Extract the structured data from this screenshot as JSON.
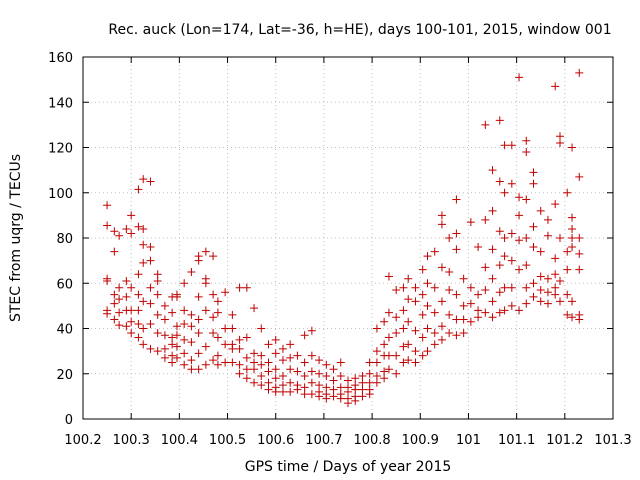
{
  "chart_data": {
    "type": "scatter",
    "title": "Rec. auck (Lon=174, Lat=-36, h=HE), days 100-101, 2015, window 001",
    "xlabel": "GPS time / Days of year 2015",
    "ylabel": "STEC from uqrg / TECUs",
    "xlim": [
      100.2,
      101.3
    ],
    "ylim": [
      0,
      160
    ],
    "xticks": [
      "100.2",
      "100.3",
      "100.4",
      "100.5",
      "100.6",
      "100.7",
      "100.8",
      "100.9",
      "101",
      "101.1",
      "101.2",
      "101.3"
    ],
    "yticks": [
      "0",
      "20",
      "40",
      "60",
      "80",
      "100",
      "120",
      "140",
      "160"
    ],
    "xtick_values": [
      100.2,
      100.3,
      100.4,
      100.5,
      100.6,
      100.7,
      100.8,
      100.9,
      101.0,
      101.1,
      101.2,
      101.3
    ],
    "ytick_values": [
      0,
      20,
      40,
      60,
      80,
      100,
      120,
      140,
      160
    ],
    "grid": true,
    "marker": "plus",
    "color": "#c00000",
    "points": [
      [
        100.25,
        94.5
      ],
      [
        100.25,
        85.5
      ],
      [
        100.25,
        62
      ],
      [
        100.25,
        61
      ],
      [
        100.25,
        48
      ],
      [
        100.25,
        46.5
      ],
      [
        100.265,
        83
      ],
      [
        100.265,
        74
      ],
      [
        100.265,
        55
      ],
      [
        100.265,
        51
      ],
      [
        100.265,
        44
      ],
      [
        100.275,
        81
      ],
      [
        100.275,
        58
      ],
      [
        100.275,
        53
      ],
      [
        100.275,
        47
      ],
      [
        100.275,
        41.5
      ],
      [
        100.29,
        84
      ],
      [
        100.29,
        61
      ],
      [
        100.29,
        54
      ],
      [
        100.29,
        48
      ],
      [
        100.29,
        41
      ],
      [
        100.3,
        90
      ],
      [
        100.3,
        82
      ],
      [
        100.3,
        58
      ],
      [
        100.3,
        48
      ],
      [
        100.3,
        43
      ],
      [
        100.3,
        38
      ],
      [
        100.315,
        101.5
      ],
      [
        100.315,
        85
      ],
      [
        100.315,
        64
      ],
      [
        100.315,
        55
      ],
      [
        100.315,
        48
      ],
      [
        100.315,
        42
      ],
      [
        100.315,
        36
      ],
      [
        100.325,
        106
      ],
      [
        100.325,
        84
      ],
      [
        100.325,
        77
      ],
      [
        100.325,
        69
      ],
      [
        100.325,
        52
      ],
      [
        100.325,
        40
      ],
      [
        100.325,
        33
      ],
      [
        100.34,
        105
      ],
      [
        100.34,
        76
      ],
      [
        100.34,
        70
      ],
      [
        100.34,
        58
      ],
      [
        100.34,
        51
      ],
      [
        100.34,
        42
      ],
      [
        100.34,
        31
      ],
      [
        100.355,
        64
      ],
      [
        100.355,
        61
      ],
      [
        100.355,
        55
      ],
      [
        100.355,
        46
      ],
      [
        100.355,
        38
      ],
      [
        100.355,
        30
      ],
      [
        100.37,
        50
      ],
      [
        100.37,
        44
      ],
      [
        100.37,
        37
      ],
      [
        100.37,
        31
      ],
      [
        100.37,
        27
      ],
      [
        100.385,
        54
      ],
      [
        100.385,
        47
      ],
      [
        100.385,
        36
      ],
      [
        100.385,
        33
      ],
      [
        100.385,
        28
      ],
      [
        100.385,
        25
      ],
      [
        100.395,
        55
      ],
      [
        100.395,
        54
      ],
      [
        100.395,
        41
      ],
      [
        100.395,
        37
      ],
      [
        100.395,
        32
      ],
      [
        100.395,
        27
      ],
      [
        100.41,
        60
      ],
      [
        100.41,
        48
      ],
      [
        100.41,
        42
      ],
      [
        100.41,
        35
      ],
      [
        100.41,
        29
      ],
      [
        100.41,
        24
      ],
      [
        100.425,
        65
      ],
      [
        100.425,
        46
      ],
      [
        100.425,
        41
      ],
      [
        100.425,
        34
      ],
      [
        100.425,
        26
      ],
      [
        100.425,
        22
      ],
      [
        100.44,
        72
      ],
      [
        100.44,
        70
      ],
      [
        100.44,
        54
      ],
      [
        100.44,
        44
      ],
      [
        100.44,
        38
      ],
      [
        100.44,
        29
      ],
      [
        100.44,
        22
      ],
      [
        100.455,
        74
      ],
      [
        100.455,
        62
      ],
      [
        100.455,
        60
      ],
      [
        100.455,
        48
      ],
      [
        100.455,
        32
      ],
      [
        100.455,
        24
      ],
      [
        100.47,
        72
      ],
      [
        100.47,
        55
      ],
      [
        100.47,
        45
      ],
      [
        100.47,
        38
      ],
      [
        100.47,
        26
      ],
      [
        100.48,
        52
      ],
      [
        100.48,
        47
      ],
      [
        100.48,
        36
      ],
      [
        100.48,
        28
      ],
      [
        100.48,
        24
      ],
      [
        100.495,
        56
      ],
      [
        100.495,
        40
      ],
      [
        100.495,
        33
      ],
      [
        100.495,
        25
      ],
      [
        100.51,
        46
      ],
      [
        100.51,
        40
      ],
      [
        100.51,
        33
      ],
      [
        100.51,
        31
      ],
      [
        100.51,
        25
      ],
      [
        100.525,
        58
      ],
      [
        100.525,
        35
      ],
      [
        100.525,
        31
      ],
      [
        100.525,
        24
      ],
      [
        100.525,
        20
      ],
      [
        100.54,
        58
      ],
      [
        100.54,
        36
      ],
      [
        100.54,
        27
      ],
      [
        100.54,
        22
      ],
      [
        100.54,
        18
      ],
      [
        100.555,
        49
      ],
      [
        100.555,
        29
      ],
      [
        100.555,
        25
      ],
      [
        100.555,
        22
      ],
      [
        100.555,
        16
      ],
      [
        100.57,
        40
      ],
      [
        100.57,
        28
      ],
      [
        100.57,
        24
      ],
      [
        100.57,
        19
      ],
      [
        100.57,
        15
      ],
      [
        100.585,
        33
      ],
      [
        100.585,
        25
      ],
      [
        100.585,
        21
      ],
      [
        100.585,
        16
      ],
      [
        100.585,
        13
      ],
      [
        100.6,
        35
      ],
      [
        100.6,
        29
      ],
      [
        100.6,
        22
      ],
      [
        100.6,
        18
      ],
      [
        100.6,
        14
      ],
      [
        100.6,
        12
      ],
      [
        100.615,
        31
      ],
      [
        100.615,
        26
      ],
      [
        100.615,
        19
      ],
      [
        100.615,
        15
      ],
      [
        100.615,
        12
      ],
      [
        100.63,
        33
      ],
      [
        100.63,
        27
      ],
      [
        100.63,
        22
      ],
      [
        100.63,
        16
      ],
      [
        100.63,
        12
      ],
      [
        100.645,
        28
      ],
      [
        100.645,
        21
      ],
      [
        100.645,
        15
      ],
      [
        100.645,
        13
      ],
      [
        100.66,
        37
      ],
      [
        100.66,
        25
      ],
      [
        100.66,
        19
      ],
      [
        100.66,
        14
      ],
      [
        100.66,
        11
      ],
      [
        100.675,
        39
      ],
      [
        100.675,
        28
      ],
      [
        100.675,
        21
      ],
      [
        100.675,
        16
      ],
      [
        100.675,
        11
      ],
      [
        100.69,
        26
      ],
      [
        100.69,
        20
      ],
      [
        100.69,
        15
      ],
      [
        100.69,
        12
      ],
      [
        100.69,
        10
      ],
      [
        100.705,
        24
      ],
      [
        100.705,
        19
      ],
      [
        100.705,
        14
      ],
      [
        100.705,
        11
      ],
      [
        100.705,
        9
      ],
      [
        100.72,
        22
      ],
      [
        100.72,
        17
      ],
      [
        100.72,
        13
      ],
      [
        100.72,
        10
      ],
      [
        100.735,
        25
      ],
      [
        100.735,
        19
      ],
      [
        100.735,
        14
      ],
      [
        100.735,
        11
      ],
      [
        100.735,
        9
      ],
      [
        100.75,
        17
      ],
      [
        100.75,
        14
      ],
      [
        100.75,
        12
      ],
      [
        100.75,
        9
      ],
      [
        100.75,
        7
      ],
      [
        100.765,
        18
      ],
      [
        100.765,
        15
      ],
      [
        100.765,
        13
      ],
      [
        100.765,
        10
      ],
      [
        100.765,
        8
      ],
      [
        100.78,
        19
      ],
      [
        100.78,
        16
      ],
      [
        100.78,
        13
      ],
      [
        100.78,
        10
      ],
      [
        100.795,
        25
      ],
      [
        100.795,
        20
      ],
      [
        100.795,
        16
      ],
      [
        100.795,
        13
      ],
      [
        100.795,
        11
      ],
      [
        100.81,
        40
      ],
      [
        100.81,
        30
      ],
      [
        100.81,
        25
      ],
      [
        100.81,
        19
      ],
      [
        100.81,
        16
      ],
      [
        100.825,
        43
      ],
      [
        100.825,
        33
      ],
      [
        100.825,
        28
      ],
      [
        100.825,
        21
      ],
      [
        100.825,
        18
      ],
      [
        100.835,
        63
      ],
      [
        100.835,
        47
      ],
      [
        100.835,
        36
      ],
      [
        100.835,
        28
      ],
      [
        100.835,
        22
      ],
      [
        100.85,
        57
      ],
      [
        100.85,
        45
      ],
      [
        100.85,
        38
      ],
      [
        100.85,
        28
      ],
      [
        100.85,
        20
      ],
      [
        100.865,
        58
      ],
      [
        100.865,
        48
      ],
      [
        100.865,
        40
      ],
      [
        100.865,
        32
      ],
      [
        100.865,
        25
      ],
      [
        100.875,
        62
      ],
      [
        100.875,
        53
      ],
      [
        100.875,
        43
      ],
      [
        100.875,
        33
      ],
      [
        100.875,
        26
      ],
      [
        100.89,
        58
      ],
      [
        100.89,
        52
      ],
      [
        100.89,
        39
      ],
      [
        100.89,
        30
      ],
      [
        100.89,
        25
      ],
      [
        100.905,
        66
      ],
      [
        100.905,
        55
      ],
      [
        100.905,
        46
      ],
      [
        100.905,
        36
      ],
      [
        100.905,
        28
      ],
      [
        100.915,
        72
      ],
      [
        100.915,
        60
      ],
      [
        100.915,
        50
      ],
      [
        100.915,
        40
      ],
      [
        100.915,
        30
      ],
      [
        100.93,
        74
      ],
      [
        100.93,
        58
      ],
      [
        100.93,
        47
      ],
      [
        100.93,
        38
      ],
      [
        100.93,
        33
      ],
      [
        100.945,
        90
      ],
      [
        100.945,
        86
      ],
      [
        100.945,
        67
      ],
      [
        100.945,
        52
      ],
      [
        100.945,
        41
      ],
      [
        100.945,
        35
      ],
      [
        100.96,
        80
      ],
      [
        100.96,
        65
      ],
      [
        100.96,
        57
      ],
      [
        100.96,
        46
      ],
      [
        100.96,
        38
      ],
      [
        100.975,
        97
      ],
      [
        100.975,
        82
      ],
      [
        100.975,
        75
      ],
      [
        100.975,
        55
      ],
      [
        100.975,
        44
      ],
      [
        100.975,
        37
      ],
      [
        100.99,
        62
      ],
      [
        100.99,
        50
      ],
      [
        100.99,
        44
      ],
      [
        100.99,
        38
      ],
      [
        101.005,
        87
      ],
      [
        101.005,
        58
      ],
      [
        101.005,
        51
      ],
      [
        101.005,
        43
      ],
      [
        101.02,
        76
      ],
      [
        101.02,
        55
      ],
      [
        101.02,
        48
      ],
      [
        101.02,
        45
      ],
      [
        101.035,
        130
      ],
      [
        101.035,
        88
      ],
      [
        101.035,
        67
      ],
      [
        101.035,
        57
      ],
      [
        101.035,
        47
      ],
      [
        101.05,
        110
      ],
      [
        101.05,
        92
      ],
      [
        101.05,
        75
      ],
      [
        101.05,
        62
      ],
      [
        101.05,
        52
      ],
      [
        101.05,
        45
      ],
      [
        101.065,
        132
      ],
      [
        101.065,
        105
      ],
      [
        101.065,
        83
      ],
      [
        101.065,
        68
      ],
      [
        101.065,
        56
      ],
      [
        101.065,
        47
      ],
      [
        101.075,
        121
      ],
      [
        101.075,
        100
      ],
      [
        101.075,
        80
      ],
      [
        101.075,
        72
      ],
      [
        101.075,
        58
      ],
      [
        101.075,
        48
      ],
      [
        101.09,
        121
      ],
      [
        101.09,
        104
      ],
      [
        101.09,
        82
      ],
      [
        101.09,
        70
      ],
      [
        101.09,
        58
      ],
      [
        101.09,
        50
      ],
      [
        101.105,
        151
      ],
      [
        101.105,
        98
      ],
      [
        101.105,
        90
      ],
      [
        101.105,
        79
      ],
      [
        101.105,
        66
      ],
      [
        101.105,
        48
      ],
      [
        101.12,
        123
      ],
      [
        101.12,
        118
      ],
      [
        101.12,
        97
      ],
      [
        101.12,
        80
      ],
      [
        101.12,
        68
      ],
      [
        101.12,
        58
      ],
      [
        101.12,
        51
      ],
      [
        101.135,
        109
      ],
      [
        101.135,
        104
      ],
      [
        101.135,
        85
      ],
      [
        101.135,
        76
      ],
      [
        101.135,
        60
      ],
      [
        101.135,
        54
      ],
      [
        101.15,
        92
      ],
      [
        101.15,
        74
      ],
      [
        101.15,
        63
      ],
      [
        101.15,
        57
      ],
      [
        101.15,
        52
      ],
      [
        101.165,
        88
      ],
      [
        101.165,
        81
      ],
      [
        101.165,
        62
      ],
      [
        101.165,
        56
      ],
      [
        101.165,
        51
      ],
      [
        101.18,
        147
      ],
      [
        101.18,
        95
      ],
      [
        101.18,
        71
      ],
      [
        101.18,
        64
      ],
      [
        101.18,
        58
      ],
      [
        101.18,
        55
      ],
      [
        101.19,
        125
      ],
      [
        101.19,
        122
      ],
      [
        101.19,
        80
      ],
      [
        101.19,
        61
      ],
      [
        101.19,
        52
      ],
      [
        101.205,
        100
      ],
      [
        101.205,
        74
      ],
      [
        101.205,
        66
      ],
      [
        101.205,
        55
      ],
      [
        101.205,
        46
      ],
      [
        101.215,
        120
      ],
      [
        101.215,
        89
      ],
      [
        101.215,
        84
      ],
      [
        101.215,
        80
      ],
      [
        101.215,
        76
      ],
      [
        101.215,
        52
      ],
      [
        101.215,
        45
      ],
      [
        101.23,
        153
      ],
      [
        101.23,
        107
      ],
      [
        101.23,
        80
      ],
      [
        101.23,
        73
      ],
      [
        101.23,
        66
      ],
      [
        101.23,
        46
      ],
      [
        101.23,
        44
      ]
    ]
  }
}
